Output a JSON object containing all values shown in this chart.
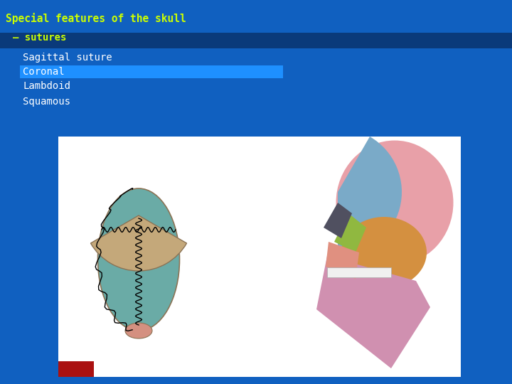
{
  "bg_color": "#1060C0",
  "bg_color_dark": "#0A4A9A",
  "title_line1": "Special features of the skull",
  "title_line2": "– sutures",
  "title_color": "#CCFF00",
  "title_fontsize": 10.5,
  "subtitle_fontsize": 10,
  "list_items": [
    "Sagittal suture",
    "Coronal",
    "Lambdoid",
    "Squamous"
  ],
  "list_color": "#FFFFFF",
  "list_fontsize": 10,
  "highlight_item": "Coronal",
  "highlight_bg": "#1E90FF",
  "highlight_color": "#FFFFFF",
  "header_bar_color": "#0A3A7A",
  "red_rect_color": "#AA1111",
  "image_box_color": "#FFFFFF",
  "skull_top_teal": "#6AABA6",
  "skull_top_beige": "#C4A87A",
  "skull_top_pink": "#D49080",
  "skull_side_pink": "#E8A0A8",
  "skull_side_blue": "#7AAAC8",
  "skull_side_orange": "#D49040",
  "skull_side_green": "#90B840",
  "skull_side_dark": "#505060",
  "skull_side_mauve": "#C070A0",
  "skull_side_salmon": "#E09080",
  "skull_side_jaw": "#D090B0"
}
